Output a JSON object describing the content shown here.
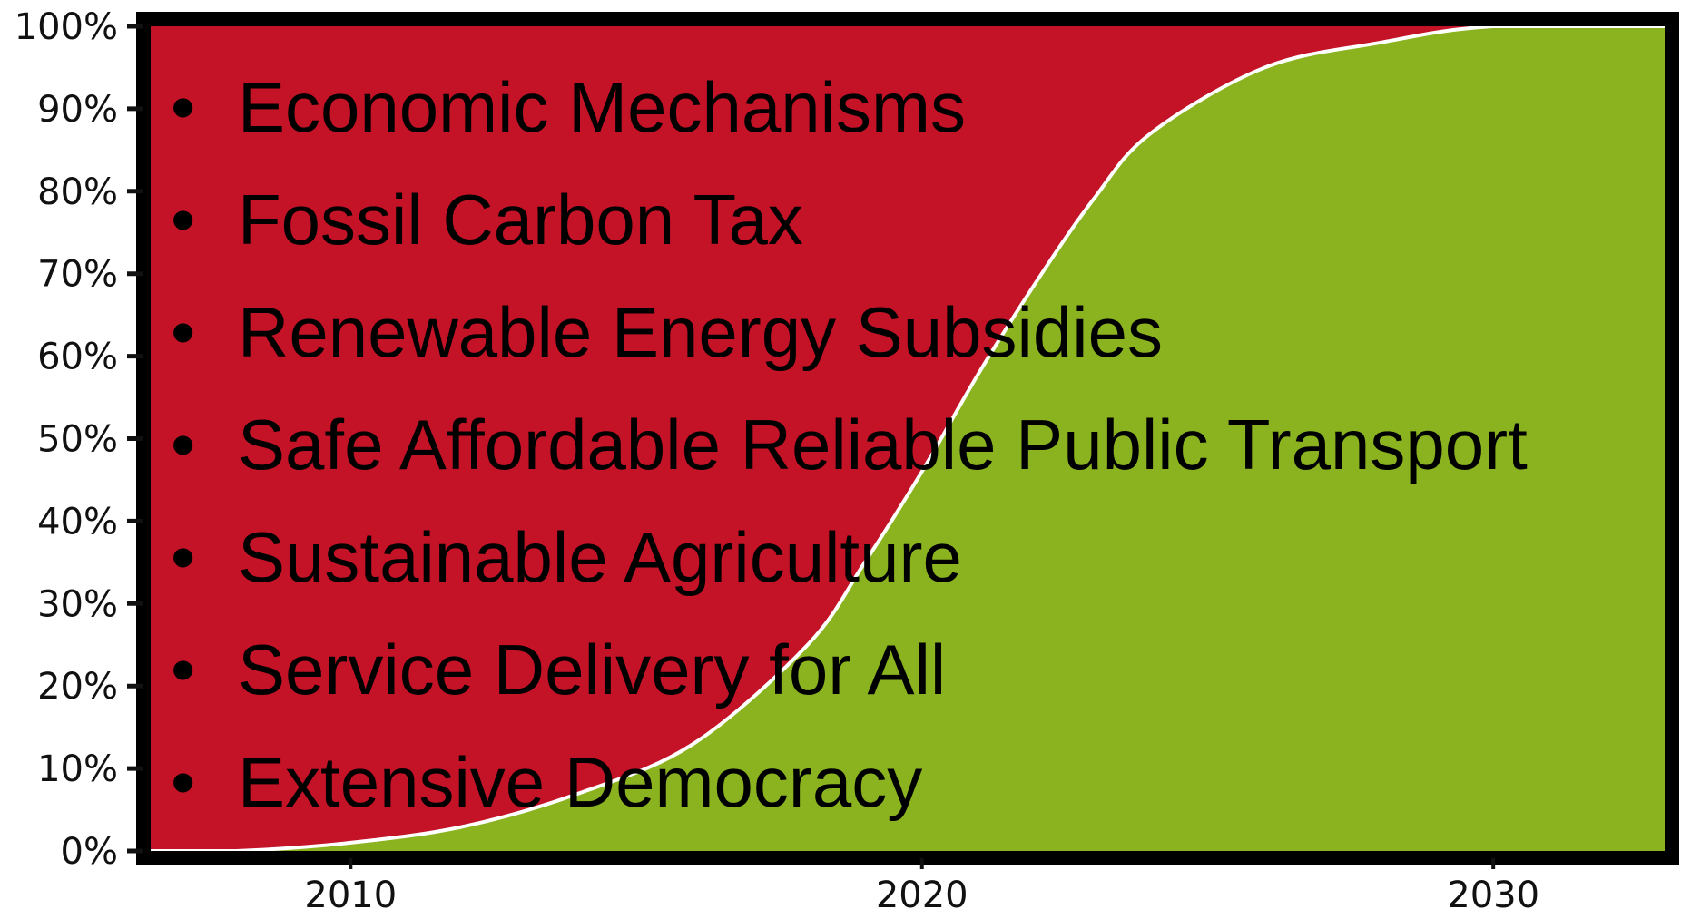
{
  "chart_data": {
    "type": "area",
    "title": "",
    "xlabel": "",
    "ylabel": "",
    "xlim": [
      2006.5,
      2033
    ],
    "ylim": [
      0,
      100
    ],
    "x_ticks": [
      2010,
      2020,
      2030
    ],
    "x_tick_labels": [
      "2010",
      "2020",
      "2030"
    ],
    "y_ticks": [
      0,
      10,
      20,
      30,
      40,
      50,
      60,
      70,
      80,
      90,
      100
    ],
    "y_tick_labels": [
      "0%",
      "10%",
      "20%",
      "30%",
      "40%",
      "50%",
      "60%",
      "70%",
      "80%",
      "90%",
      "100%"
    ],
    "grid": false,
    "stacked": true,
    "x": [
      2008,
      2010,
      2012,
      2014,
      2016,
      2018,
      2019,
      2020,
      2021,
      2022,
      2023,
      2024,
      2026,
      2028,
      2030,
      2033
    ],
    "series": [
      {
        "name": "",
        "color": "#8ab31f",
        "values": [
          0,
          1,
          3,
          7,
          13,
          25,
          35,
          46,
          58,
          69,
          79,
          87,
          95,
          98,
          100,
          100
        ]
      },
      {
        "name": "",
        "color": "#c41227",
        "values": [
          100,
          99,
          97,
          93,
          87,
          75,
          65,
          54,
          42,
          31,
          21,
          13,
          5,
          2,
          0,
          0
        ]
      }
    ],
    "annotations": [
      "Economic Mechanisms",
      "Fossil Carbon Tax",
      "Renewable Energy Subsidies",
      "Safe Affordable Reliable Public Transport",
      "Sustainable Agriculture",
      "Service Delivery for All",
      "Extensive Democracy"
    ],
    "bullet_symbol": "•",
    "boundary_color": "#ffffff",
    "frame_color": "#000000"
  }
}
